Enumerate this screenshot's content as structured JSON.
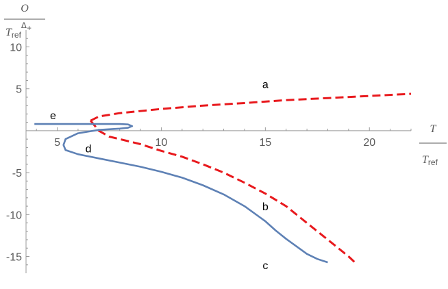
{
  "chart_data": {
    "type": "line",
    "title": "",
    "xlabel": {
      "numerator": "T",
      "denominator_base": "T",
      "denominator_sub": "ref"
    },
    "ylabel": {
      "numerator": "O",
      "denominator_base": "T",
      "denominator_sub": "ref",
      "denominator_sup_base": "Δ",
      "denominator_sup_sub": "+"
    },
    "xlim": [
      3.5,
      22
    ],
    "ylim": [
      -17,
      12
    ],
    "x_ticks": [
      5,
      10,
      15,
      20
    ],
    "y_ticks": [
      -15,
      -10,
      -5,
      5,
      10
    ],
    "x_tick_labels": [
      "5",
      "10",
      "15",
      "20"
    ],
    "y_tick_labels": [
      "-15",
      "-10",
      "-5",
      "5",
      "10"
    ],
    "grid": false,
    "legend": "none",
    "colors": {
      "blue": "#5e81b5",
      "red": "#e8191d",
      "axis": "#999999",
      "text": "#5a5a5a"
    },
    "series": [
      {
        "style": "dashed-red",
        "color": "#e8191d",
        "points": [
          [
            6.6,
            1.2
          ],
          [
            7.0,
            1.7
          ],
          [
            8.0,
            2.1
          ],
          [
            10.0,
            2.6
          ],
          [
            12.0,
            3.0
          ],
          [
            14.0,
            3.3
          ],
          [
            16.0,
            3.65
          ],
          [
            18.0,
            3.9
          ],
          [
            20.0,
            4.15
          ],
          [
            22.0,
            4.4
          ]
        ]
      },
      {
        "style": "dashed-red",
        "color": "#e8191d",
        "points": [
          [
            6.6,
            1.2
          ],
          [
            7.0,
            0.0
          ],
          [
            7.5,
            -0.7
          ],
          [
            8.0,
            -1.0
          ],
          [
            9.0,
            -1.6
          ],
          [
            10.0,
            -2.4
          ],
          [
            11.0,
            -3.1
          ],
          [
            12.0,
            -4.0
          ],
          [
            13.0,
            -5.0
          ],
          [
            14.0,
            -6.2
          ],
          [
            15.0,
            -7.5
          ],
          [
            16.0,
            -9.0
          ],
          [
            17.0,
            -11.0
          ],
          [
            18.0,
            -13.0
          ],
          [
            19.0,
            -15.0
          ],
          [
            19.3,
            -15.7
          ]
        ]
      },
      {
        "style": "solid-blue",
        "color": "#5e81b5",
        "points": [
          [
            3.9,
            0.8
          ],
          [
            6.0,
            0.8
          ],
          [
            8.0,
            0.8
          ],
          [
            8.4,
            0.75
          ],
          [
            8.6,
            0.55
          ],
          [
            8.4,
            0.35
          ],
          [
            8.0,
            0.25
          ],
          [
            7.0,
            0.1
          ],
          [
            6.0,
            -0.3
          ],
          [
            5.4,
            -1.0
          ],
          [
            5.3,
            -1.7
          ],
          [
            5.4,
            -2.3
          ],
          [
            6.0,
            -2.8
          ],
          [
            7.0,
            -3.3
          ],
          [
            8.0,
            -3.8
          ],
          [
            9.0,
            -4.3
          ],
          [
            10.0,
            -4.9
          ],
          [
            11.0,
            -5.6
          ],
          [
            12.0,
            -6.5
          ],
          [
            13.0,
            -7.6
          ],
          [
            14.0,
            -9.0
          ],
          [
            15.0,
            -10.8
          ],
          [
            15.5,
            -11.9
          ],
          [
            16.0,
            -12.9
          ],
          [
            16.5,
            -13.8
          ],
          [
            17.0,
            -14.7
          ],
          [
            17.5,
            -15.3
          ],
          [
            18.0,
            -15.7
          ]
        ]
      }
    ],
    "annotations": [
      {
        "text": "a",
        "x": 15.0,
        "y": 5.1
      },
      {
        "text": "b",
        "x": 15.0,
        "y": -9.5
      },
      {
        "text": "c",
        "x": 15.0,
        "y": -16.5
      },
      {
        "text": "d",
        "x": 6.5,
        "y": -2.6
      },
      {
        "text": "e",
        "x": 4.8,
        "y": 1.4
      }
    ]
  }
}
